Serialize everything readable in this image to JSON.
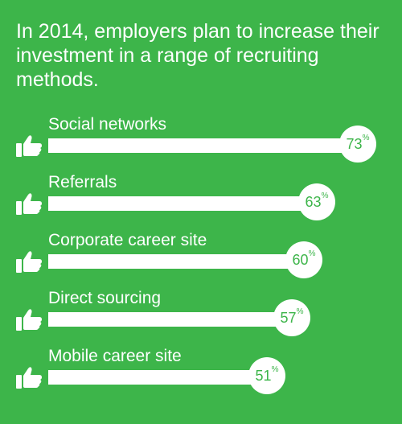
{
  "title": "In 2014, employers plan to increase their investment in a range of recruiting methods.",
  "colors": {
    "background": "#3db54a",
    "bar": "#ffffff",
    "value_text": "#3db54a"
  },
  "icon": "thumbs-up-icon",
  "percent_symbol": "%",
  "chart_data": {
    "type": "bar",
    "orientation": "horizontal",
    "title": "In 2014, employers plan to increase their investment in a range of recruiting methods.",
    "categories": [
      "Social networks",
      "Referrals",
      "Corporate career site",
      "Direct sourcing",
      "Mobile career site"
    ],
    "values": [
      73,
      63,
      60,
      57,
      51
    ],
    "value_labels": [
      "73",
      "63",
      "60",
      "57",
      "51"
    ],
    "unit": "%",
    "xlabel": "",
    "ylabel": "",
    "grid": false,
    "legend": "none"
  }
}
